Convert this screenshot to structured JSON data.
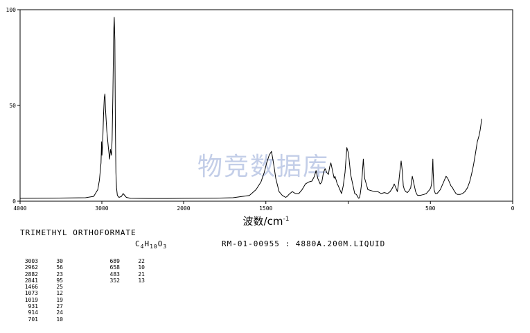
{
  "chart_data": {
    "type": "line",
    "xlabel": "波数/cm",
    "xlabel_superscript": "-1",
    "x_ticks": [
      4000,
      3000,
      2000,
      1500,
      1000,
      500,
      0
    ],
    "x_tick_labels": [
      "4000",
      "3000",
      "2000",
      "1500",
      "",
      "500",
      "0"
    ],
    "y_ticks": [
      0,
      50,
      100
    ],
    "y_tick_labels": [
      "0",
      "50",
      "100"
    ],
    "ylim": [
      0,
      100
    ],
    "x_axis_note": "x axis scale changes at 2000 cm-1",
    "series": [
      {
        "x": [
          4000,
          3600,
          3200,
          3100,
          3050,
          3030,
          3010,
          3003,
          2998,
          2990,
          2980,
          2970,
          2962,
          2955,
          2940,
          2920,
          2905,
          2895,
          2882,
          2875,
          2865,
          2855,
          2848,
          2841,
          2835,
          2828,
          2820,
          2810,
          2790,
          2760,
          2740,
          2700,
          2650,
          2400,
          2200,
          2000,
          1800,
          1700,
          1600,
          1560,
          1530,
          1510,
          1495,
          1480,
          1466,
          1460,
          1450,
          1440,
          1420,
          1400,
          1390,
          1380,
          1370,
          1360,
          1340,
          1320,
          1300,
          1280,
          1260,
          1240,
          1220,
          1205,
          1195,
          1185,
          1170,
          1160,
          1150,
          1140,
          1130,
          1120,
          1112,
          1105,
          1095,
          1085,
          1080,
          1073,
          1066,
          1060,
          1050,
          1040,
          1030,
          1019,
          1008,
          998,
          985,
          970,
          960,
          950,
          940,
          935,
          931,
          926,
          920,
          914,
          908,
          900,
          880,
          860,
          840,
          820,
          800,
          780,
          760,
          745,
          730,
          720,
          710,
          701,
          692,
          685,
          678,
          670,
          665,
          658,
          650,
          640,
          630,
          620,
          610,
          600,
          590,
          580,
          570,
          555,
          540,
          525,
          515,
          505,
          498,
          493,
          490,
          485,
          483,
          478,
          470,
          460,
          440,
          420,
          405,
          395,
          385,
          375,
          365,
          360,
          352,
          345,
          335,
          320,
          305,
          290,
          275,
          262,
          250,
          238,
          226,
          215,
          205,
          198,
          193,
          190,
          188
        ],
        "y": [
          1.5,
          1.6,
          1.8,
          2.5,
          6,
          11,
          20,
          31,
          24,
          30,
          45,
          54,
          56,
          48,
          37,
          28,
          22,
          27,
          24,
          32,
          55,
          88,
          96,
          84,
          40,
          15,
          7,
          3,
          2,
          2.5,
          4,
          2,
          1.5,
          1.4,
          1.4,
          1.5,
          1.6,
          1.8,
          3,
          6,
          10,
          15,
          20,
          24,
          26,
          23,
          18,
          12,
          5,
          3,
          2.5,
          2,
          2.5,
          3.5,
          5,
          4,
          4,
          6,
          9,
          10,
          10.5,
          13,
          16,
          12,
          9,
          10,
          15,
          17,
          15,
          14,
          18,
          20,
          16,
          12,
          13,
          11,
          9,
          8,
          6,
          4,
          8,
          15,
          28,
          25,
          14,
          8,
          4,
          3.5,
          2,
          1.5,
          2,
          4,
          8,
          14,
          22,
          12,
          6,
          5.5,
          5,
          5,
          4,
          4.5,
          4,
          5,
          7,
          9,
          7,
          5,
          10,
          16,
          21,
          15,
          8,
          6,
          5,
          4.5,
          5.5,
          7,
          13,
          9,
          5,
          3.2,
          3,
          3.2,
          3.5,
          4,
          5,
          6,
          7,
          9,
          12,
          22,
          15,
          6,
          4,
          4,
          6,
          10,
          13,
          12,
          10,
          8,
          7,
          6,
          5,
          4,
          3.5,
          3.5,
          4,
          5,
          7,
          10,
          14,
          19,
          25,
          31,
          34,
          37,
          40,
          42,
          43
        ]
      }
    ]
  },
  "watermark": "物竞数据库",
  "compound_name": "TRIMETHYL ORTHOFORMATE",
  "formula": {
    "parts": [
      {
        "text": "C",
        "sub": "4"
      },
      {
        "text": "H",
        "sub": "10"
      },
      {
        "text": "O",
        "sub": "3"
      }
    ]
  },
  "reference_info": "RM-01-00955 : 4880A.200M.LIQUID",
  "peak_table": {
    "columns": [
      [
        {
          "wavenumber": "3003",
          "transmittance": "30"
        },
        {
          "wavenumber": "2962",
          "transmittance": "56"
        },
        {
          "wavenumber": "2882",
          "transmittance": "23"
        },
        {
          "wavenumber": "2841",
          "transmittance": "95"
        },
        {
          "wavenumber": "1466",
          "transmittance": "25"
        },
        {
          "wavenumber": "1073",
          "transmittance": "12"
        },
        {
          "wavenumber": "1019",
          "transmittance": "19"
        },
        {
          "wavenumber": "931",
          "transmittance": "27"
        },
        {
          "wavenumber": "914",
          "transmittance": "24"
        },
        {
          "wavenumber": "701",
          "transmittance": "10"
        }
      ],
      [
        {
          "wavenumber": "689",
          "transmittance": "22"
        },
        {
          "wavenumber": "658",
          "transmittance": "10"
        },
        {
          "wavenumber": "483",
          "transmittance": "21"
        },
        {
          "wavenumber": "352",
          "transmittance": "13"
        }
      ]
    ]
  }
}
